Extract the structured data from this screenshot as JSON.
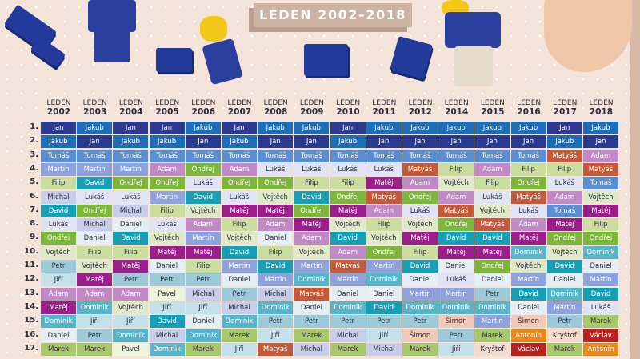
{
  "title": "LEDEN 2002–2018",
  "header_month": "LEDEN",
  "years": [
    "2002",
    "2003",
    "2004",
    "2005",
    "2006",
    "2007",
    "2008",
    "2009",
    "2010",
    "2011",
    "2012",
    "2014",
    "2015",
    "2016",
    "2017",
    "2018"
  ],
  "ranks": [
    "1.",
    "2.",
    "3.",
    "4.",
    "5.",
    "6.",
    "7.",
    "8.",
    "9.",
    "10.",
    "11.",
    "12.",
    "13.",
    "14.",
    "15.",
    "16.",
    "17."
  ],
  "table": [
    [
      "Jan",
      "Jakub",
      "Tomáš",
      "Martin",
      "Filip",
      "Michal",
      "David",
      "Lukáš",
      "Ondřej",
      "Vojtěch",
      "Petr",
      "Jiří",
      "Adam",
      "Matěj",
      "Dominik",
      "Daniel",
      "Marek"
    ],
    [
      "Jakub",
      "Jan",
      "Tomáš",
      "Martin",
      "David",
      "Lukáš",
      "Ondřej",
      "Michal",
      "Daniel",
      "Filip",
      "Vojtěch",
      "Matěj",
      "Adam",
      "Dominik",
      "Jiří",
      "Petr",
      "Marek"
    ],
    [
      "Jan",
      "Jakub",
      "Tomáš",
      "Martin",
      "Ondřej",
      "Lukáš",
      "Michal",
      "Daniel",
      "David",
      "Filip",
      "Matěj",
      "Petr",
      "Adam",
      "Vojtěch",
      "Jiří",
      "Dominik",
      "Pavel"
    ],
    [
      "Jan",
      "Jakub",
      "Tomáš",
      "Adam",
      "Ondřej",
      "Martin",
      "Filip",
      "Lukáš",
      "Vojtěch",
      "Matěj",
      "Daniel",
      "Petr",
      "Pavel",
      "Jiří",
      "David",
      "Michal",
      "Dominik"
    ],
    [
      "Jakub",
      "Jan",
      "Tomáš",
      "Ondřej",
      "Lukáš",
      "David",
      "Vojtěch",
      "Adam",
      "Martin",
      "Matěj",
      "Filip",
      "Petr",
      "Michal",
      "Jiří",
      "Daniel",
      "Dominik",
      "Marek"
    ],
    [
      "Jan",
      "Jakub",
      "Tomáš",
      "Adam",
      "Ondřej",
      "Lukáš",
      "Matěj",
      "Filip",
      "Vojtěch",
      "David",
      "Martin",
      "Daniel",
      "Petr",
      "Michal",
      "Dominik",
      "Marek",
      "Jiří"
    ],
    [
      "Jakub",
      "Jan",
      "Tomáš",
      "Lukáš",
      "Ondřej",
      "Vojtěch",
      "Matěj",
      "Adam",
      "Daniel",
      "Filip",
      "David",
      "Martin",
      "Michal",
      "Dominik",
      "Petr",
      "Jiří",
      "Matyáš"
    ],
    [
      "Jakub",
      "Jan",
      "Tomáš",
      "Lukáš",
      "Filip",
      "David",
      "Ondřej",
      "Matěj",
      "Adam",
      "Vojtěch",
      "Martin",
      "Dominik",
      "Matyáš",
      "Daniel",
      "Petr",
      "Marek",
      "Michal"
    ],
    [
      "Jan",
      "Jakub",
      "Tomáš",
      "Lukáš",
      "Filip",
      "Ondřej",
      "Matěj",
      "Vojtěch",
      "David",
      "Adam",
      "Matyáš",
      "Martin",
      "Daniel",
      "Dominik",
      "Petr",
      "Michal",
      "Marek"
    ],
    [
      "Jakub",
      "Jan",
      "Tomáš",
      "Lukáš",
      "Matěj",
      "Matyáš",
      "Adam",
      "Filip",
      "Vojtěch",
      "Ondřej",
      "Martin",
      "Dominik",
      "Daniel",
      "David",
      "Petr",
      "Jiří",
      "Michal"
    ],
    [
      "Jakub",
      "Jan",
      "Tomáš",
      "Matyáš",
      "Adam",
      "Ondřej",
      "Lukáš",
      "Vojtěch",
      "Matěj",
      "Filip",
      "David",
      "Daniel",
      "Martin",
      "Dominik",
      "Petr",
      "Šimon",
      "Marek"
    ],
    [
      "Jakub",
      "Jan",
      "Tomáš",
      "Filip",
      "Vojtěch",
      "Adam",
      "Matyáš",
      "Ondřej",
      "David",
      "Matěj",
      "Daniel",
      "Lukáš",
      "Martin",
      "Dominik",
      "Šimon",
      "Petr",
      "Jiří"
    ],
    [
      "Jakub",
      "Jan",
      "Tomáš",
      "Adam",
      "Filip",
      "Lukáš",
      "Vojtěch",
      "Matyáš",
      "David",
      "Matěj",
      "Ondřej",
      "Daniel",
      "Petr",
      "Dominik",
      "Martin",
      "Marek",
      "Kryštof"
    ],
    [
      "Jakub",
      "Jan",
      "Tomáš",
      "Filip",
      "Ondřej",
      "Matyáš",
      "Lukáš",
      "Adam",
      "Matěj",
      "Dominik",
      "Vojtěch",
      "Martin",
      "David",
      "Daniel",
      "Šimon",
      "Antonín",
      "Václav"
    ],
    [
      "Jan",
      "Jakub",
      "Matyáš",
      "Filip",
      "Lukáš",
      "Adam",
      "Tomáš",
      "Matěj",
      "Ondřej",
      "Vojtěch",
      "David",
      "Daniel",
      "Dominik",
      "Martin",
      "Petr",
      "Kryštof",
      "Marek"
    ],
    [
      "Jakub",
      "Jan",
      "Adam",
      "Matyáš",
      "Tomáš",
      "Vojtěch",
      "Matěj",
      "Filip",
      "Ondřej",
      "Dominik",
      "Daniel",
      "Martin",
      "David",
      "Lukáš",
      "Marek",
      "Václav",
      "Antonín"
    ]
  ],
  "name_colors": {
    "Jan": [
      "#2b3a8c",
      "#ffffff"
    ],
    "Jakub": [
      "#1f6db4",
      "#ffffff"
    ],
    "Tomáš": [
      "#5b8ed0",
      "#ffffff"
    ],
    "Martin": [
      "#8ea2dc",
      "#ffffff"
    ],
    "Adam": [
      "#c08ac6",
      "#ffffff"
    ],
    "Ondřej": [
      "#7db63a",
      "#ffffff"
    ],
    "Filip": [
      "#cadd9f",
      "#2d2d3a"
    ],
    "Michal": [
      "#c8cde9",
      "#2d2d3a"
    ],
    "David": [
      "#199fb5",
      "#ffffff"
    ],
    "Lukáš": [
      "#dfe3f3",
      "#2d2d3a"
    ],
    "Vojtěch": [
      "#dfe9c8",
      "#2d2d3a"
    ],
    "Matěj": [
      "#9a1f8a",
      "#ffffff"
    ],
    "Daniel": [
      "#e4eef3",
      "#2d2d3a"
    ],
    "Petr": [
      "#9ccad8",
      "#2d2d3a"
    ],
    "Jiří": [
      "#c4e1ea",
      "#2d2d3a"
    ],
    "Dominik": [
      "#56b5c8",
      "#ffffff"
    ],
    "Marek": [
      "#a7c96b",
      "#2d2d3a"
    ],
    "Pavel": [
      "#eef3dc",
      "#2d2d3a"
    ],
    "Matyáš": [
      "#c55a3a",
      "#ffffff"
    ],
    "Šimon": [
      "#f0c9b8",
      "#2d2d3a"
    ],
    "Antonín": [
      "#e88a1b",
      "#ffffff"
    ],
    "Václav": [
      "#b8221e",
      "#ffffff"
    ],
    "Kryštof": [
      "#f2dacd",
      "#2d2d3a"
    ]
  }
}
